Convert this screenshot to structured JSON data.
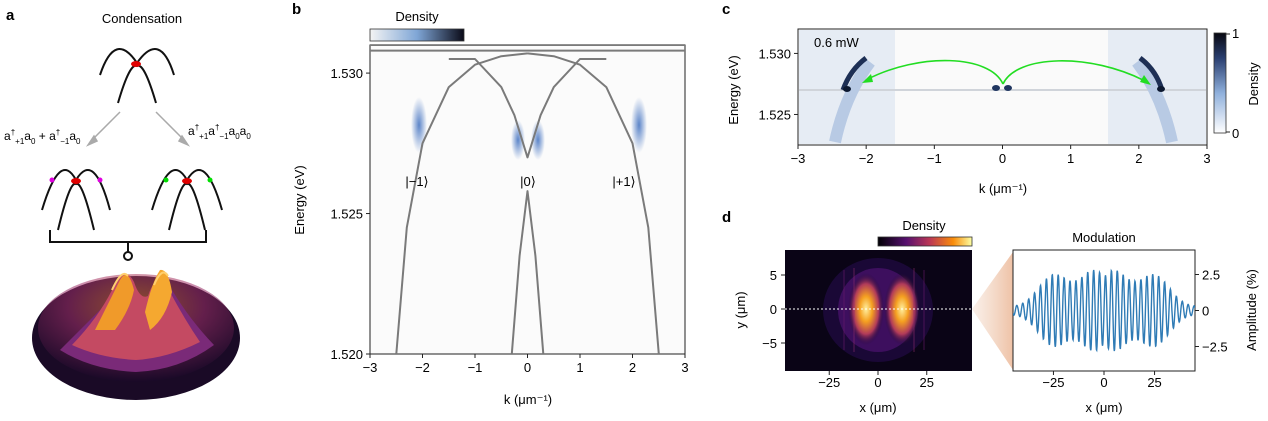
{
  "panel_labels": {
    "a": "a",
    "b": "b",
    "c": "c",
    "d": "d"
  },
  "panel_a": {
    "title": "Condensation",
    "process_left": "a†+1a0 + a†−1a0",
    "process_right": "a†+1a†−1a0a0"
  },
  "panel_b": {
    "colorbar_label": "Density",
    "xlabel": "k (μm⁻¹)",
    "ylabel": "Energy (eV)",
    "state_minus": "|−1⟩",
    "state_zero": "|0⟩",
    "state_plus": "|+1⟩"
  },
  "panel_c": {
    "power_label": "0.6 mW",
    "xlabel": "k (μm⁻¹)",
    "ylabel": "Energy (eV)",
    "colorbar_label": "Density",
    "colorbar_ticks": [
      "1",
      "0"
    ]
  },
  "panel_d": {
    "density_label": "Density",
    "modulation_title": "Modulation",
    "left_xlabel": "x (μm)",
    "left_ylabel": "y (μm)",
    "right_xlabel": "x (μm)",
    "right_ylabel": "Amplitude (%)"
  },
  "chart_data": [
    {
      "type": "line",
      "panel": "b",
      "xlabel": "k (μm⁻¹)",
      "ylabel": "Energy (eV)",
      "xlim": [
        -3,
        3
      ],
      "ylim": [
        1.52,
        1.531
      ],
      "xticks": [
        "−3",
        "−2",
        "−1",
        "0",
        "1",
        "2",
        "3"
      ],
      "yticks": [
        "1.520",
        "1.525",
        "1.530"
      ],
      "series": [
        {
          "x": [
            -1.5,
            -1.0,
            -0.5,
            -0.25,
            0,
            0.25,
            0.5,
            1.0,
            1.5
          ],
          "y": [
            1.5305,
            1.5305,
            1.5295,
            1.5285,
            1.527,
            1.5285,
            1.5295,
            1.5305,
            1.5305
          ]
        },
        {
          "x": [
            -0.3,
            -0.15,
            0,
            0.15,
            0.3
          ],
          "y": [
            1.52,
            1.5235,
            1.5258,
            1.5235,
            1.52
          ]
        },
        {
          "x": [
            -2.5,
            -2.3,
            -2.0,
            -1.5,
            -1.0,
            -0.5,
            0
          ],
          "y": [
            1.52,
            1.5245,
            1.5275,
            1.5295,
            1.5303,
            1.5306,
            1.5307
          ]
        },
        {
          "x": [
            0,
            0.5,
            1.0,
            1.5,
            2.0,
            2.3,
            2.5
          ],
          "y": [
            1.5307,
            1.5306,
            1.5303,
            1.5295,
            1.5275,
            1.5245,
            1.52
          ]
        },
        {
          "x": [
            -3,
            3
          ],
          "y": [
            1.5308,
            1.5308
          ]
        },
        {
          "x": [
            -3,
            3
          ],
          "y": [
            1.531,
            1.531
          ]
        }
      ]
    },
    {
      "type": "heatmap",
      "panel": "c",
      "xlabel": "k (μm⁻¹)",
      "ylabel": "Energy (eV)",
      "xlim": [
        -3,
        3
      ],
      "ylim": [
        1.5225,
        1.532
      ],
      "xticks": [
        "−3",
        "−2",
        "−1",
        "0",
        "1",
        "2",
        "3"
      ],
      "yticks": [
        "1.525",
        "1.530"
      ]
    },
    {
      "type": "heatmap",
      "panel": "d-left",
      "xlabel": "x (μm)",
      "ylabel": "y (μm)",
      "xticks": [
        "−25",
        "0",
        "25"
      ],
      "yticks": [
        "5",
        "0",
        "−5"
      ]
    },
    {
      "type": "line",
      "panel": "d-right",
      "xlabel": "x (μm)",
      "ylabel": "Amplitude (%)",
      "xlim": [
        -45,
        45
      ],
      "ylim": [
        -4.2,
        4.2
      ],
      "xticks": [
        "−25",
        "0",
        "25"
      ],
      "yticks": [
        "2.5",
        "0",
        "−2.5"
      ]
    }
  ]
}
